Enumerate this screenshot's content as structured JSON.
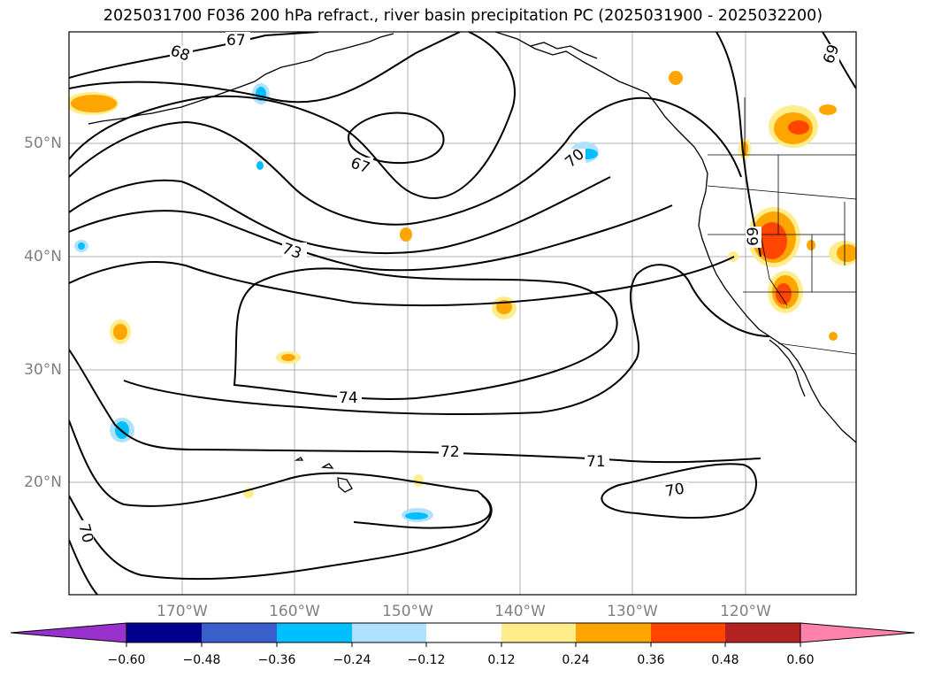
{
  "title": "2025031700 F036 200 hPa refract., river basin precipitation PC (2025031900 - 2025032200)",
  "map": {
    "lat_labels": [
      "50°N",
      "40°N",
      "30°N",
      "20°N"
    ],
    "lon_labels": [
      "170°W",
      "160°W",
      "150°W",
      "140°W",
      "130°W",
      "120°W"
    ],
    "contour_labels": [
      "67",
      "68",
      "67",
      "70",
      "73",
      "74",
      "72",
      "71",
      "70",
      "70",
      "69",
      "69"
    ]
  },
  "colorbar": {
    "ticks": [
      "−0.60",
      "−0.48",
      "−0.36",
      "−0.24",
      "−0.12",
      "0.12",
      "0.24",
      "0.36",
      "0.48",
      "0.60"
    ],
    "colors": [
      "#9932cc",
      "#00008b",
      "#3a5fcd",
      "#00bfff",
      "#b0e2ff",
      "#ffffff",
      "#ffec8b",
      "#ffa500",
      "#ff4500",
      "#b22222",
      "#ff82ab",
      "#9932cc"
    ]
  }
}
